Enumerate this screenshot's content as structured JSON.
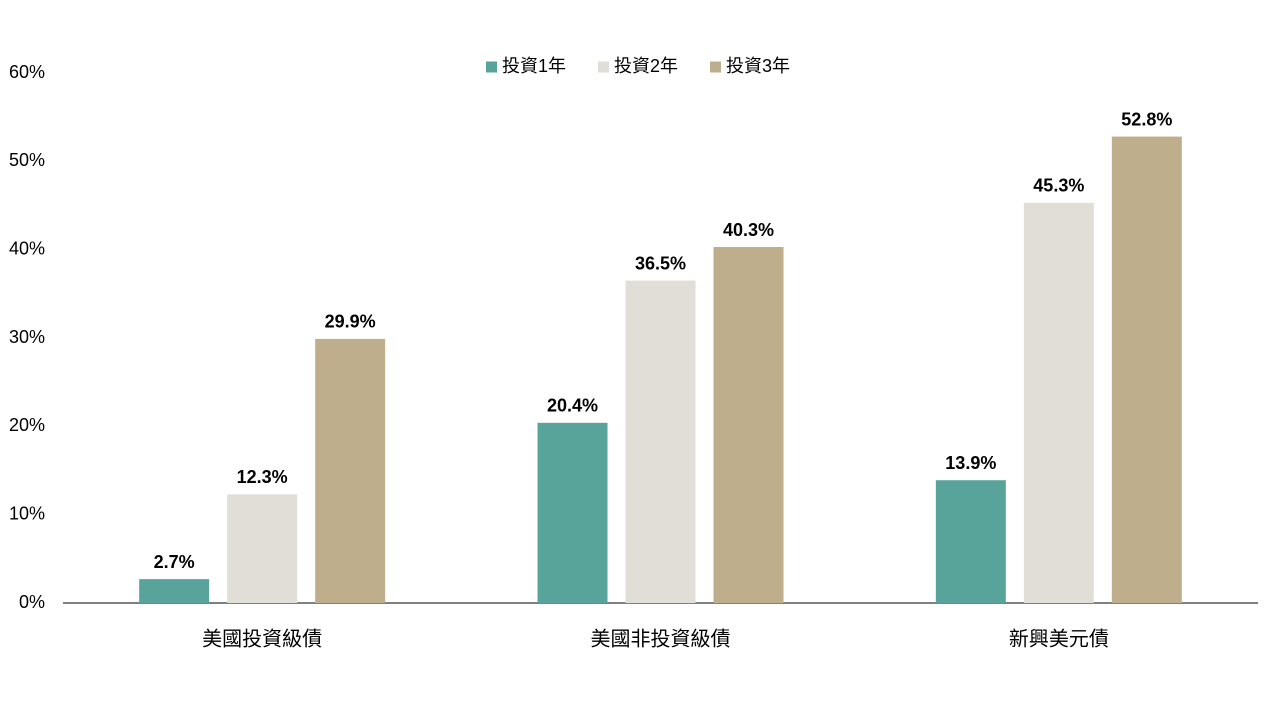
{
  "chart_data": {
    "type": "bar",
    "categories": [
      "美國投資級債",
      "美國非投資級債",
      "新興美元債"
    ],
    "series": [
      {
        "name": "投資1年",
        "color": "#58a39a",
        "values": [
          2.7,
          20.4,
          13.9
        ],
        "value_labels": [
          "2.7%",
          "20.4%",
          "13.9%"
        ]
      },
      {
        "name": "投資2年",
        "color": "#e1ded8",
        "values": [
          12.3,
          36.5,
          45.3
        ],
        "value_labels": [
          "12.3%",
          "36.5%",
          "45.3%"
        ]
      },
      {
        "name": "投資3年",
        "color": "#bfae8c",
        "values": [
          29.9,
          40.3,
          52.8
        ],
        "value_labels": [
          "29.9%",
          "40.3%",
          "52.8%"
        ]
      }
    ],
    "ylim": [
      0,
      60
    ],
    "yticks": [
      {
        "value": 0,
        "label": "0%"
      },
      {
        "value": 10,
        "label": "10%"
      },
      {
        "value": 20,
        "label": "20%"
      },
      {
        "value": 30,
        "label": "30%"
      },
      {
        "value": 40,
        "label": "40%"
      },
      {
        "value": 50,
        "label": "50%"
      },
      {
        "value": 60,
        "label": "60%"
      }
    ],
    "legend": "top"
  }
}
